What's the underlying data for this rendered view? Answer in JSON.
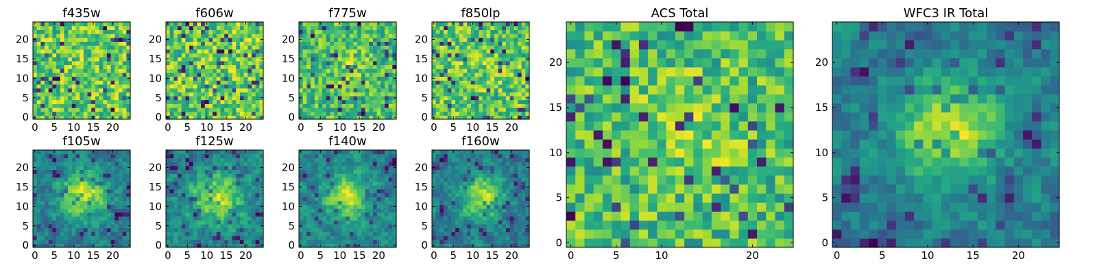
{
  "chart_data": [
    {
      "type": "heatmap",
      "title": "f435w",
      "size": 25,
      "xticks": [
        0,
        5,
        10,
        15,
        20
      ],
      "yticks": [
        0,
        5,
        10,
        15,
        20
      ],
      "colormap": "viridis",
      "smoothness": 0,
      "center_boost": 0.0,
      "seed": 11
    },
    {
      "type": "heatmap",
      "title": "f606w",
      "size": 25,
      "xticks": [
        0,
        5,
        10,
        15,
        20
      ],
      "yticks": [
        0,
        5,
        10,
        15,
        20
      ],
      "colormap": "viridis",
      "smoothness": 0,
      "center_boost": 0.0,
      "seed": 23
    },
    {
      "type": "heatmap",
      "title": "f775w",
      "size": 25,
      "xticks": [
        0,
        5,
        10,
        15,
        20
      ],
      "yticks": [
        0,
        5,
        10,
        15,
        20
      ],
      "colormap": "viridis",
      "smoothness": 0,
      "center_boost": 0.1,
      "seed": 37
    },
    {
      "type": "heatmap",
      "title": "f850lp",
      "size": 25,
      "xticks": [
        0,
        5,
        10,
        15,
        20
      ],
      "yticks": [
        0,
        5,
        10,
        15,
        20
      ],
      "colormap": "viridis",
      "smoothness": 0,
      "center_boost": 0.05,
      "seed": 41
    },
    {
      "type": "heatmap",
      "title": "f105w",
      "size": 25,
      "xticks": [
        0,
        5,
        10,
        15,
        20
      ],
      "yticks": [
        0,
        5,
        10,
        15,
        20
      ],
      "colormap": "viridis",
      "smoothness": 1,
      "center_boost": 0.5,
      "seed": 53
    },
    {
      "type": "heatmap",
      "title": "f125w",
      "size": 25,
      "xticks": [
        0,
        5,
        10,
        15,
        20
      ],
      "yticks": [
        0,
        5,
        10,
        15,
        20
      ],
      "colormap": "viridis",
      "smoothness": 1,
      "center_boost": 0.4,
      "seed": 67
    },
    {
      "type": "heatmap",
      "title": "f140w",
      "size": 25,
      "xticks": [
        0,
        5,
        10,
        15,
        20
      ],
      "yticks": [
        0,
        5,
        10,
        15,
        20
      ],
      "colormap": "viridis",
      "smoothness": 1,
      "center_boost": 0.45,
      "seed": 71
    },
    {
      "type": "heatmap",
      "title": "f160w",
      "size": 25,
      "xticks": [
        0,
        5,
        10,
        15,
        20
      ],
      "yticks": [
        0,
        5,
        10,
        15,
        20
      ],
      "colormap": "viridis",
      "smoothness": 1,
      "center_boost": 0.45,
      "seed": 89
    },
    {
      "type": "heatmap",
      "title": "ACS Total",
      "size": 25,
      "xticks": [
        0,
        5,
        10,
        20
      ],
      "yticks": [
        0,
        5,
        10,
        15,
        20
      ],
      "colormap": "viridis",
      "smoothness": 0,
      "center_boost": 0.15,
      "seed": 97
    },
    {
      "type": "heatmap",
      "title": "WFC3 IR Total",
      "size": 25,
      "xticks": [
        0,
        5,
        10,
        15,
        20
      ],
      "yticks": [
        0,
        5,
        10,
        15,
        20
      ],
      "colormap": "viridis",
      "smoothness": 1,
      "center_boost": 0.55,
      "seed": 103
    }
  ]
}
